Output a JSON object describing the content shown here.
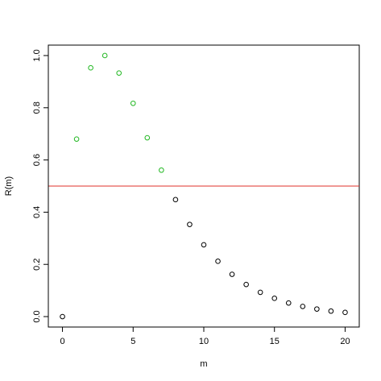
{
  "chart_data": {
    "type": "scatter",
    "title": "",
    "xlabel": "m",
    "ylabel": "R(m)",
    "xlim": [
      -1,
      21
    ],
    "ylim": [
      -0.04,
      1.04
    ],
    "x_ticks": [
      0,
      5,
      10,
      15,
      20
    ],
    "x_tick_labels": [
      "0",
      "5",
      "10",
      "15",
      "20"
    ],
    "y_ticks": [
      0.0,
      0.2,
      0.4,
      0.6,
      0.8,
      1.0
    ],
    "y_tick_labels": [
      "0.0",
      "0.2",
      "0.4",
      "0.6",
      "0.8",
      "1.0"
    ],
    "grid": false,
    "legend": "none",
    "reference_line": {
      "orientation": "horizontal",
      "y": 0.5,
      "color": "#e0302a"
    },
    "colors": {
      "above": "#22b822",
      "below": "#000000"
    },
    "points": [
      {
        "x": 0,
        "y": 0.0,
        "color": "#000000"
      },
      {
        "x": 1,
        "y": 0.68,
        "color": "#22b822"
      },
      {
        "x": 2,
        "y": 0.953,
        "color": "#22b822"
      },
      {
        "x": 3,
        "y": 1.0,
        "color": "#22b822"
      },
      {
        "x": 4,
        "y": 0.933,
        "color": "#22b822"
      },
      {
        "x": 5,
        "y": 0.817,
        "color": "#22b822"
      },
      {
        "x": 6,
        "y": 0.685,
        "color": "#22b822"
      },
      {
        "x": 7,
        "y": 0.561,
        "color": "#22b822"
      },
      {
        "x": 8,
        "y": 0.448,
        "color": "#000000"
      },
      {
        "x": 9,
        "y": 0.353,
        "color": "#000000"
      },
      {
        "x": 10,
        "y": 0.275,
        "color": "#000000"
      },
      {
        "x": 11,
        "y": 0.212,
        "color": "#000000"
      },
      {
        "x": 12,
        "y": 0.162,
        "color": "#000000"
      },
      {
        "x": 13,
        "y": 0.123,
        "color": "#000000"
      },
      {
        "x": 14,
        "y": 0.093,
        "color": "#000000"
      },
      {
        "x": 15,
        "y": 0.07,
        "color": "#000000"
      },
      {
        "x": 16,
        "y": 0.052,
        "color": "#000000"
      },
      {
        "x": 17,
        "y": 0.039,
        "color": "#000000"
      },
      {
        "x": 18,
        "y": 0.029,
        "color": "#000000"
      },
      {
        "x": 19,
        "y": 0.021,
        "color": "#000000"
      },
      {
        "x": 20,
        "y": 0.016,
        "color": "#000000"
      }
    ]
  }
}
